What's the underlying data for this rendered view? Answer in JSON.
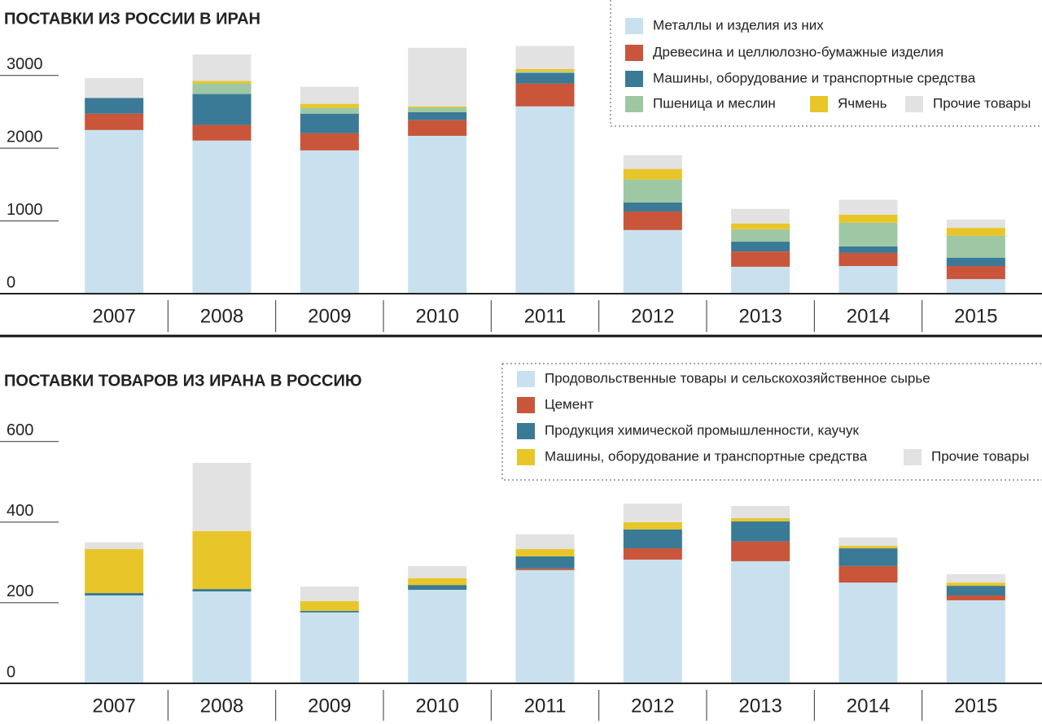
{
  "chart_data": [
    {
      "type": "stacked-bar",
      "title": "ПОСТАВКИ  ИЗ РОССИИ В ИРАН",
      "categories": [
        "2007",
        "2008",
        "2009",
        "2010",
        "2011",
        "2012",
        "2013",
        "2014",
        "2015"
      ],
      "ylim": [
        0,
        3400
      ],
      "yticks": [
        0,
        1000,
        2000,
        3000
      ],
      "series": [
        {
          "name": "Металлы и изделия из них",
          "color": "#c9e1ee",
          "values": [
            2250,
            2105,
            1970,
            2170,
            2575,
            875,
            370,
            380,
            200
          ]
        },
        {
          "name": "Древесина и целлюлозно-бумажные изделия",
          "color": "#c9553a",
          "values": [
            225,
            215,
            235,
            215,
            315,
            255,
            210,
            180,
            180
          ]
        },
        {
          "name": "Машины, оборудование и транспортные средства",
          "color": "#3a7a96",
          "values": [
            215,
            425,
            270,
            110,
            145,
            125,
            135,
            90,
            115
          ]
        },
        {
          "name": "Пшеница и меслин",
          "color": "#9ec8a4",
          "values": [
            0,
            145,
            80,
            60,
            20,
            315,
            170,
            325,
            300
          ]
        },
        {
          "name": "Ячмень",
          "color": "#e8c629",
          "values": [
            0,
            35,
            55,
            20,
            35,
            145,
            80,
            110,
            110
          ]
        },
        {
          "name": "Прочие товары",
          "color": "#e2e2e2",
          "values": [
            275,
            365,
            235,
            805,
            315,
            190,
            200,
            205,
            115
          ]
        }
      ]
    },
    {
      "type": "stacked-bar",
      "title": "ПОСТАВКИ ТОВАРОВ ИЗ ИРАНА В РОССИЮ",
      "categories": [
        "2007",
        "2008",
        "2009",
        "2010",
        "2011",
        "2012",
        "2013",
        "2014",
        "2015"
      ],
      "ylim": [
        0,
        650
      ],
      "yticks": [
        0,
        200,
        400,
        600
      ],
      "series": [
        {
          "name": "Продовольственные товары и сельскохозяйственное сырье",
          "color": "#c9e1ee",
          "values": [
            218,
            228,
            176,
            232,
            281,
            307,
            303,
            250,
            206
          ]
        },
        {
          "name": "Цемент",
          "color": "#c9553a",
          "values": [
            0,
            0,
            0,
            0,
            4,
            28,
            49,
            41,
            12
          ]
        },
        {
          "name": "Продукция химической промышленности, каучук",
          "color": "#3a7a96",
          "values": [
            6,
            6,
            4,
            12,
            30,
            47,
            50,
            44,
            24
          ]
        },
        {
          "name": "Машины, оборудование и транспортные средства",
          "color": "#e8c629",
          "values": [
            109,
            144,
            24,
            17,
            18,
            18,
            8,
            6,
            8
          ]
        },
        {
          "name": "Прочие товары",
          "color": "#e2e2e2",
          "values": [
            17,
            169,
            36,
            30,
            37,
            46,
            30,
            21,
            21
          ]
        }
      ]
    }
  ]
}
